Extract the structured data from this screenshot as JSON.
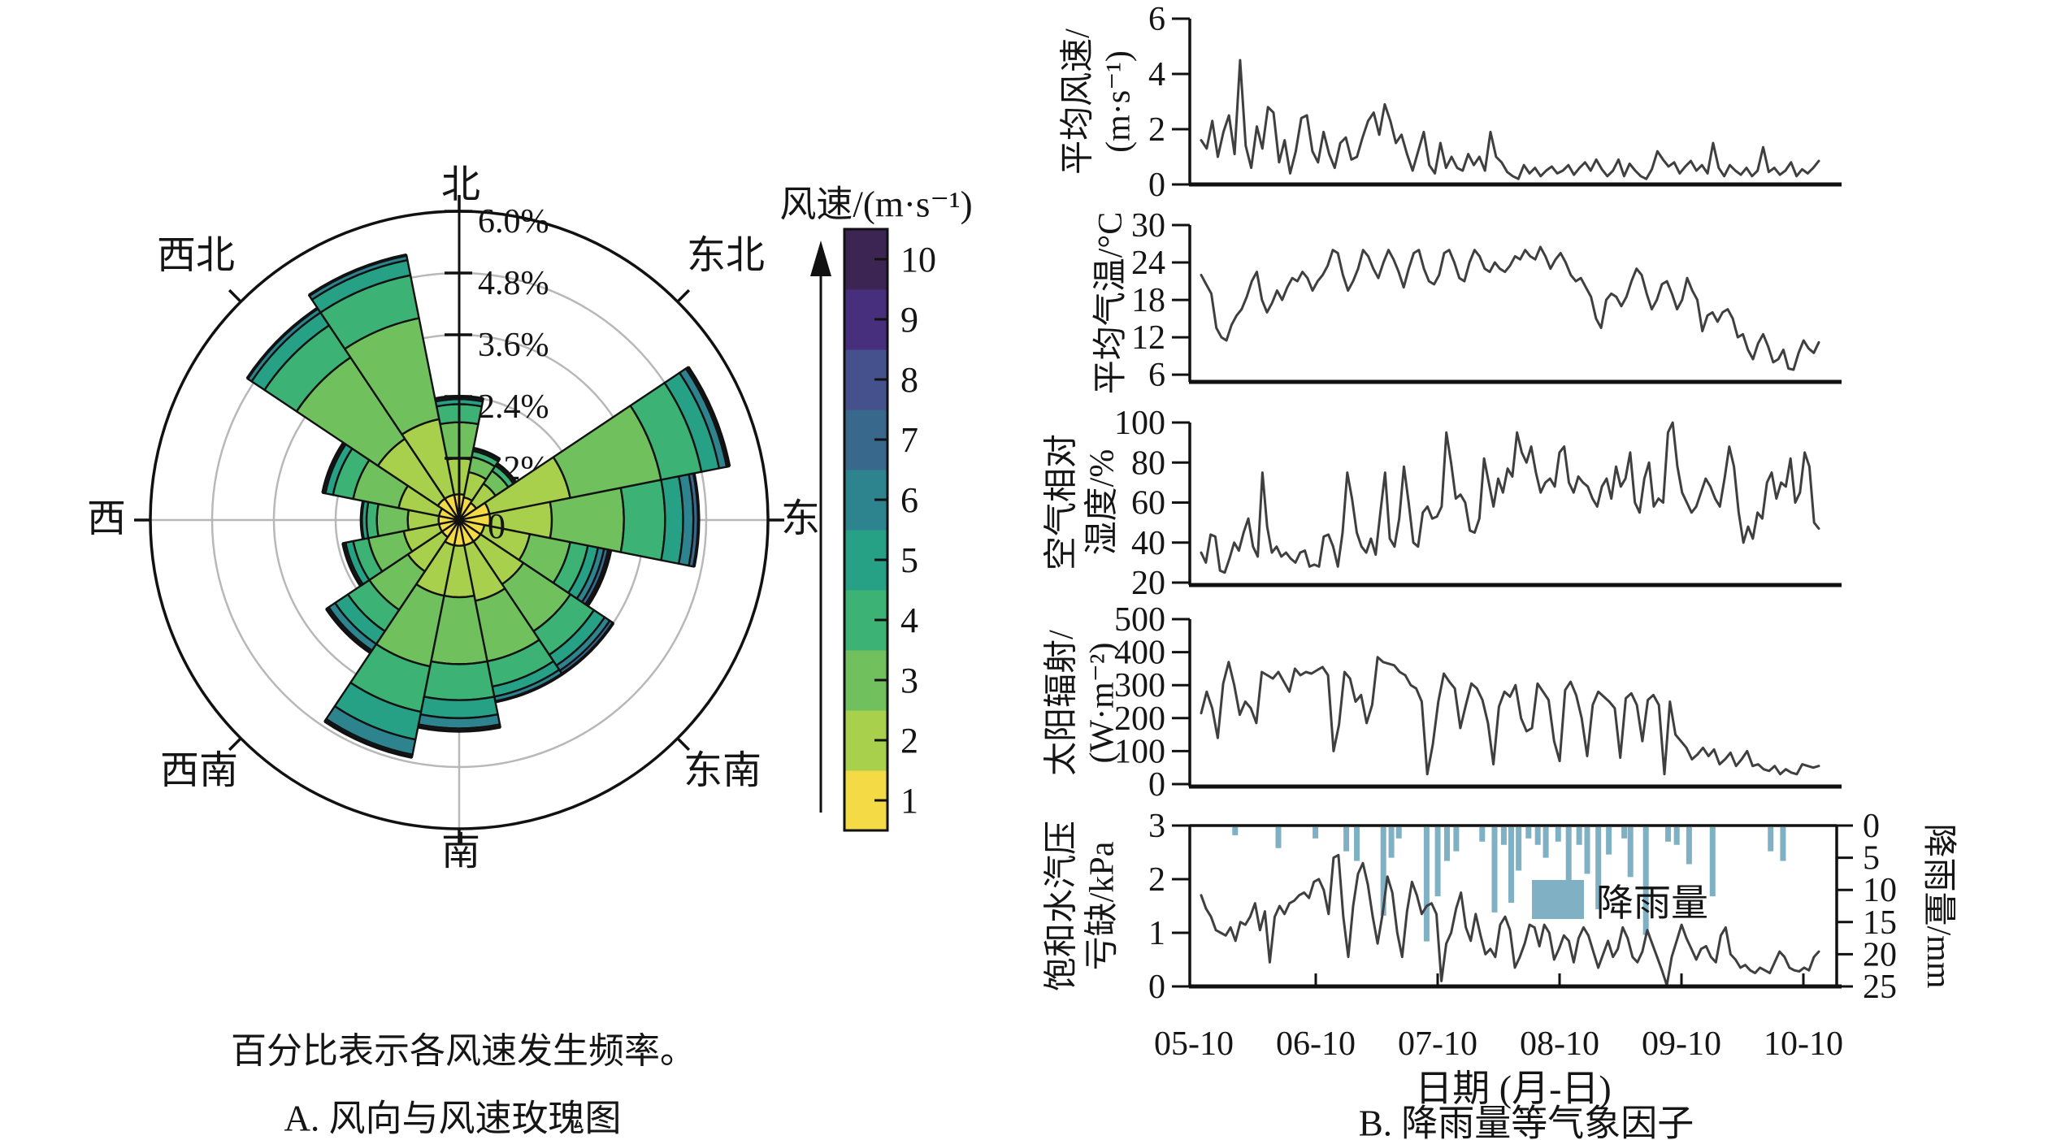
{
  "panel_a": {
    "note": "百分比表示各风速发生频率。",
    "caption": "A. 风向与风速玫瑰图"
  },
  "panel_b": {
    "xlabel": "日期 (月-日)",
    "caption": "B. 降雨量等气象因子",
    "x_ticks": [
      "05-10",
      "06-10",
      "07-10",
      "08-10",
      "09-10",
      "10-10"
    ],
    "legend": {
      "label": "降雨量",
      "color": "#7fb0c3"
    }
  },
  "colors": {
    "line": "#3f3f3f",
    "rain": "#7fb0c3",
    "grid_grey": "#b8b8b8",
    "ink": "#111111"
  },
  "chart_data": [
    {
      "type": "windrose",
      "colorbar_title": "风速/(m·s⁻¹)",
      "ring_step_percent": 1.2,
      "ring_labels": [
        "1.2%",
        "2.4%",
        "3.6%",
        "4.8%",
        "6.0%"
      ],
      "center_label": "0",
      "direction_labels": [
        {
          "text": "北",
          "angle": 0
        },
        {
          "text": "东北",
          "angle": 45
        },
        {
          "text": "东",
          "angle": 90
        },
        {
          "text": "东南",
          "angle": 135
        },
        {
          "text": "南",
          "angle": 180
        },
        {
          "text": "西南",
          "angle": 225
        },
        {
          "text": "西",
          "angle": 270
        },
        {
          "text": "西北",
          "angle": 315
        }
      ],
      "speed_bins": [
        {
          "speed": 1,
          "color": "#f4da44"
        },
        {
          "speed": 2,
          "color": "#a8d04c"
        },
        {
          "speed": 3,
          "color": "#70c15e"
        },
        {
          "speed": 4,
          "color": "#3cb274"
        },
        {
          "speed": 5,
          "color": "#26a186"
        },
        {
          "speed": 6,
          "color": "#2d838e"
        },
        {
          "speed": 7,
          "color": "#39688d"
        },
        {
          "speed": 8,
          "color": "#45518c"
        },
        {
          "speed": 9,
          "color": "#472f7d"
        },
        {
          "speed": 10,
          "color": "#3c2552"
        }
      ],
      "sectors": [
        {
          "dir": "N",
          "angle": 0.0,
          "bins": [
            0.5,
            0.7,
            0.7,
            0.35,
            0.1,
            0.05,
            0,
            0
          ]
        },
        {
          "dir": "NNE",
          "angle": 22.5,
          "bins": [
            0.45,
            0.5,
            0.3,
            0.12,
            0.05,
            0,
            0,
            0
          ]
        },
        {
          "dir": "NE",
          "angle": 45.0,
          "bins": [
            0.4,
            0.45,
            0.3,
            0.12,
            0.05,
            0,
            0,
            0
          ]
        },
        {
          "dir": "ENE",
          "angle": 67.5,
          "bins": [
            0.6,
            1.6,
            1.8,
            0.8,
            0.35,
            0.15,
            0.05,
            0
          ]
        },
        {
          "dir": "E",
          "angle": 90.0,
          "bins": [
            0.6,
            1.2,
            1.4,
            0.8,
            0.35,
            0.2,
            0.1,
            0
          ]
        },
        {
          "dir": "ESE",
          "angle": 112.5,
          "bins": [
            0.5,
            0.9,
            0.8,
            0.35,
            0.2,
            0.12,
            0.08,
            0.05
          ]
        },
        {
          "dir": "SE",
          "angle": 135.0,
          "bins": [
            0.5,
            1.0,
            1.1,
            0.55,
            0.25,
            0.12,
            0.08,
            0
          ]
        },
        {
          "dir": "SSE",
          "angle": 157.5,
          "bins": [
            0.5,
            1.1,
            1.2,
            0.5,
            0.2,
            0.1,
            0,
            0
          ]
        },
        {
          "dir": "S",
          "angle": 180.0,
          "bins": [
            0.5,
            1.0,
            1.3,
            0.7,
            0.35,
            0.2,
            0.05,
            0
          ]
        },
        {
          "dir": "SSW",
          "angle": 202.5,
          "bins": [
            0.5,
            1.0,
            1.4,
            0.9,
            0.55,
            0.3,
            0.05,
            0
          ]
        },
        {
          "dir": "SW",
          "angle": 225.0,
          "bins": [
            0.4,
            0.8,
            0.9,
            0.5,
            0.3,
            0.15,
            0.05,
            0
          ]
        },
        {
          "dir": "WSW",
          "angle": 247.5,
          "bins": [
            0.4,
            0.7,
            0.7,
            0.3,
            0.15,
            0.05,
            0,
            0
          ]
        },
        {
          "dir": "W",
          "angle": 270.0,
          "bins": [
            0.4,
            0.6,
            0.6,
            0.2,
            0.1,
            0,
            0,
            0
          ]
        },
        {
          "dir": "WNW",
          "angle": 292.5,
          "bins": [
            0.4,
            0.8,
            0.9,
            0.4,
            0.15,
            0.05,
            0,
            0
          ]
        },
        {
          "dir": "NW",
          "angle": 315.0,
          "bins": [
            0.5,
            1.4,
            1.9,
            0.75,
            0.3,
            0.1,
            0,
            0
          ]
        },
        {
          "dir": "NNW",
          "angle": 337.5,
          "bins": [
            0.5,
            1.5,
            2.0,
            0.85,
            0.3,
            0.1,
            0,
            0
          ]
        }
      ]
    },
    {
      "type": "line",
      "id": "wind_speed",
      "ylabel_lines": [
        "平均风速/",
        "(m·s⁻¹)"
      ],
      "yticks": [
        0,
        2,
        4,
        6
      ],
      "yrange": [
        0,
        6
      ],
      "values": [
        1.6,
        1.3,
        2.3,
        1.0,
        1.9,
        2.5,
        1.1,
        4.5,
        1.4,
        0.6,
        2.1,
        1.3,
        2.8,
        2.6,
        0.8,
        1.6,
        0.4,
        1.2,
        2.4,
        2.5,
        1.2,
        0.8,
        1.9,
        1.1,
        0.6,
        1.5,
        1.7,
        0.9,
        1.0,
        1.7,
        2.3,
        2.6,
        1.8,
        2.9,
        2.3,
        1.5,
        1.8,
        1.1,
        0.5,
        1.2,
        1.9,
        0.7,
        0.4,
        1.5,
        0.6,
        1.0,
        0.6,
        0.5,
        1.1,
        0.7,
        1.0,
        0.5,
        1.9,
        1.0,
        0.8,
        0.45,
        0.3,
        0.2,
        0.7,
        0.4,
        0.6,
        0.3,
        0.5,
        0.65,
        0.4,
        0.5,
        0.7,
        0.35,
        0.6,
        0.8,
        0.5,
        0.9,
        0.55,
        0.3,
        0.5,
        0.9,
        0.3,
        0.75,
        0.5,
        0.3,
        0.2,
        0.55,
        1.2,
        0.9,
        0.65,
        0.8,
        0.4,
        0.65,
        0.85,
        0.5,
        0.7,
        0.4,
        1.5,
        0.6,
        0.3,
        0.7,
        0.5,
        0.35,
        0.6,
        0.3,
        0.5,
        1.35,
        0.45,
        0.6,
        0.35,
        0.5,
        0.8,
        0.3,
        0.55,
        0.4,
        0.6,
        0.85
      ]
    },
    {
      "type": "line",
      "id": "air_temperature",
      "ylabel_lines": [
        "平均气温/°C"
      ],
      "yticks": [
        6,
        12,
        18,
        24,
        30
      ],
      "yrange": [
        4.85,
        30
      ],
      "values": [
        22,
        20.5,
        19,
        13.5,
        12,
        11.5,
        14,
        15.5,
        16.5,
        18.5,
        21,
        22.5,
        18,
        16,
        17.5,
        19.5,
        18,
        20,
        21.5,
        21,
        22.5,
        21.5,
        19.5,
        21,
        22,
        23.5,
        26,
        25.5,
        22,
        19.5,
        21,
        23,
        26,
        25,
        23,
        21.5,
        24,
        26,
        24.5,
        22.5,
        20,
        23,
        25.5,
        26,
        23,
        21,
        20.5,
        22,
        25.5,
        26,
        24,
        21.5,
        21,
        24,
        26,
        25,
        23,
        22.5,
        24,
        23,
        22.5,
        23.5,
        25,
        24.5,
        26,
        25,
        24.5,
        26.5,
        25,
        23,
        24.5,
        25.5,
        24,
        22,
        21,
        21.5,
        20,
        18.5,
        15,
        13.5,
        18,
        19,
        18.5,
        17,
        18.5,
        21,
        23,
        22,
        19,
        16.5,
        18,
        20.5,
        21,
        19,
        16.5,
        18,
        21.5,
        19.5,
        18,
        13,
        15.5,
        16,
        14.5,
        16,
        16.5,
        15,
        12,
        12.5,
        10,
        8.5,
        11,
        12.5,
        10.5,
        8,
        8.5,
        10,
        7,
        6.8,
        9.5,
        11.5,
        10.2,
        9.5,
        11.2
      ]
    },
    {
      "type": "line",
      "id": "relative_humidity",
      "ylabel_lines": [
        "空气相对",
        "湿度/%"
      ],
      "yticks": [
        20,
        40,
        60,
        80,
        100
      ],
      "yrange": [
        18.8,
        100
      ],
      "values": [
        35,
        30,
        44,
        43,
        26,
        25,
        32,
        40,
        36,
        45,
        52,
        38,
        33,
        75,
        48,
        35,
        38,
        33,
        35,
        32,
        30,
        35,
        36,
        28,
        29,
        28,
        43,
        44,
        38,
        28,
        45,
        75,
        62,
        45,
        38,
        35,
        42,
        34,
        55,
        75,
        42,
        38,
        52,
        78,
        60,
        40,
        38,
        55,
        58,
        52,
        53,
        58,
        95,
        80,
        62,
        64,
        60,
        46,
        45,
        52,
        82,
        70,
        58,
        72,
        65,
        77,
        73,
        95,
        85,
        80,
        88,
        75,
        65,
        70,
        72,
        68,
        85,
        88,
        70,
        65,
        73,
        70,
        68,
        62,
        58,
        68,
        72,
        62,
        78,
        68,
        72,
        85,
        60,
        55,
        72,
        80,
        58,
        62,
        60,
        95,
        100,
        78,
        65,
        60,
        55,
        58,
        65,
        72,
        68,
        62,
        58,
        72,
        88,
        78,
        55,
        40,
        48,
        42,
        55,
        52,
        70,
        75,
        62,
        70,
        68,
        82,
        60,
        65,
        85,
        78,
        50,
        47
      ]
    },
    {
      "type": "line",
      "id": "solar_radiation",
      "ylabel_lines": [
        "太阳辐射/",
        "(W·m⁻²)"
      ],
      "yticks": [
        0,
        100,
        200,
        300,
        400,
        500
      ],
      "yrange": [
        -7.4,
        500
      ],
      "values": [
        215,
        280,
        230,
        140,
        305,
        370,
        300,
        210,
        250,
        230,
        185,
        340,
        330,
        320,
        340,
        310,
        280,
        350,
        330,
        340,
        335,
        345,
        355,
        330,
        100,
        180,
        340,
        320,
        250,
        270,
        185,
        240,
        385,
        370,
        365,
        360,
        340,
        330,
        300,
        290,
        250,
        30,
        120,
        250,
        335,
        310,
        290,
        170,
        240,
        305,
        290,
        255,
        185,
        60,
        235,
        280,
        265,
        300,
        200,
        160,
        170,
        305,
        280,
        255,
        130,
        70,
        285,
        310,
        270,
        200,
        85,
        240,
        280,
        265,
        250,
        230,
        80,
        260,
        275,
        240,
        130,
        255,
        270,
        240,
        30,
        250,
        150,
        130,
        110,
        75,
        90,
        110,
        85,
        105,
        60,
        75,
        95,
        55,
        75,
        100,
        55,
        60,
        45,
        40,
        55,
        30,
        45,
        35,
        30,
        60,
        55,
        50,
        55
      ]
    },
    {
      "type": "line_with_bars",
      "id": "vpd_and_rain",
      "ylabel_lines": [
        "饱和水汽压",
        "亏缺/kPa"
      ],
      "yticks": [
        0,
        1,
        2,
        3
      ],
      "yrange": [
        0,
        3
      ],
      "right_axis": {
        "label": "降雨量/mm",
        "ticks": [
          0,
          5,
          10,
          15,
          20,
          25
        ],
        "range": [
          0,
          25
        ],
        "inverted": true
      },
      "values": [
        1.7,
        1.45,
        1.3,
        1.05,
        1.0,
        0.95,
        1.1,
        0.85,
        1.2,
        1.15,
        1.3,
        1.55,
        1.05,
        1.4,
        0.45,
        1.3,
        1.5,
        1.35,
        1.55,
        1.6,
        1.7,
        1.75,
        1.65,
        1.95,
        2.0,
        1.8,
        1.35,
        2.4,
        2.45,
        1.3,
        0.55,
        1.5,
        2.1,
        2.3,
        1.9,
        1.3,
        0.8,
        1.35,
        2.05,
        1.75,
        1.0,
        0.55,
        1.4,
        1.95,
        1.7,
        1.35,
        1.5,
        1.55,
        1.35,
        0.1,
        0.8,
        1.0,
        1.45,
        1.75,
        1.1,
        0.85,
        1.35,
        0.95,
        0.6,
        0.7,
        0.55,
        1.15,
        1.3,
        1.05,
        0.35,
        0.55,
        0.8,
        1.15,
        1.1,
        0.75,
        1.15,
        1.0,
        0.5,
        0.7,
        0.95,
        0.85,
        0.45,
        0.9,
        1.1,
        0.95,
        0.65,
        0.35,
        0.6,
        0.85,
        0.55,
        0.7,
        1.1,
        0.9,
        0.55,
        0.45,
        0.65,
        1.05,
        0.8,
        0.55,
        0.3,
        0.02,
        0.55,
        0.85,
        1.15,
        0.9,
        0.7,
        0.5,
        0.7,
        0.75,
        0.55,
        0.45,
        0.95,
        1.1,
        0.6,
        0.5,
        0.35,
        0.4,
        0.3,
        0.25,
        0.35,
        0.3,
        0.25,
        0.45,
        0.65,
        0.55,
        0.35,
        0.3,
        0.28,
        0.35,
        0.3,
        0.55,
        0.65
      ],
      "rain_bars": [
        [
          0.055,
          1.5
        ],
        [
          0.125,
          3.5
        ],
        [
          0.185,
          2
        ],
        [
          0.235,
          4
        ],
        [
          0.252,
          5.5
        ],
        [
          0.295,
          14
        ],
        [
          0.308,
          5
        ],
        [
          0.32,
          2
        ],
        [
          0.365,
          18
        ],
        [
          0.383,
          11
        ],
        [
          0.398,
          5.5
        ],
        [
          0.413,
          4
        ],
        [
          0.455,
          2.5
        ],
        [
          0.475,
          13.5
        ],
        [
          0.49,
          3
        ],
        [
          0.502,
          12
        ],
        [
          0.514,
          7
        ],
        [
          0.53,
          2
        ],
        [
          0.545,
          3
        ],
        [
          0.558,
          5
        ],
        [
          0.578,
          2.5
        ],
        [
          0.595,
          10
        ],
        [
          0.612,
          3
        ],
        [
          0.625,
          7.5
        ],
        [
          0.643,
          13
        ],
        [
          0.66,
          4.5
        ],
        [
          0.685,
          2
        ],
        [
          0.695,
          8
        ],
        [
          0.72,
          17
        ],
        [
          0.756,
          2.5
        ],
        [
          0.77,
          3
        ],
        [
          0.79,
          6
        ],
        [
          0.828,
          11
        ],
        [
          0.922,
          4
        ],
        [
          0.942,
          5.5
        ]
      ]
    }
  ]
}
